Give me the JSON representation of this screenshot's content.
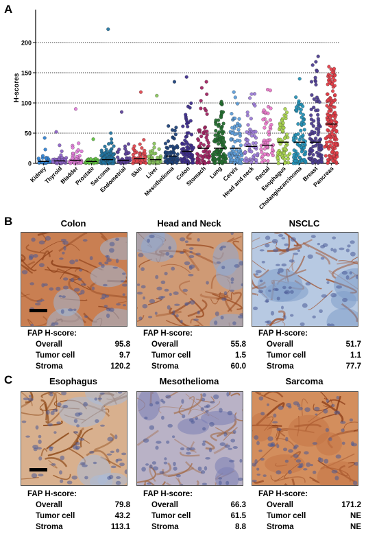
{
  "panel_labels": {
    "a": "A",
    "b": "B",
    "c": "C"
  },
  "chart_data": {
    "type": "scatter",
    "ylabel": "H-scores",
    "ylim": [
      0,
      250
    ],
    "yticks": [
      0,
      50,
      100,
      150,
      200
    ],
    "grid": "dotted horizontal at 50, 100, 150, 200",
    "categories": [
      "Kidney",
      "Thyroid",
      "Bladder",
      "Prostate",
      "Sarcoma",
      "Endometrial",
      "Skin",
      "Liver",
      "Mesothelioma",
      "Colon",
      "Stomach",
      "Lung",
      "Cervix",
      "Head and neck",
      "Rectal",
      "Esophagus",
      "Cholangiocarcinoma",
      "Breast",
      "Pancreas"
    ],
    "colors": [
      "#2e7fd0",
      "#8a5fc6",
      "#e07ad8",
      "#5cbf3d",
      "#1e73a0",
      "#5b3f99",
      "#e0424b",
      "#88c45a",
      "#1a3f78",
      "#3b2a8a",
      "#a0205e",
      "#1f6b2b",
      "#5b9bd8",
      "#9a7ad6",
      "#e875c8",
      "#a6d24a",
      "#1f8fb5",
      "#4a3a8e",
      "#e23b44"
    ],
    "stats": [
      {
        "median": 3,
        "max": 42,
        "n": 30
      },
      {
        "median": 4,
        "max": 52,
        "n": 45
      },
      {
        "median": 5,
        "max": 90,
        "n": 45
      },
      {
        "median": 3,
        "max": 40,
        "n": 25
      },
      {
        "median": 6,
        "max": 222,
        "n": 140
      },
      {
        "median": 5,
        "max": 85,
        "n": 40
      },
      {
        "median": 8,
        "max": 118,
        "n": 55
      },
      {
        "median": 6,
        "max": 112,
        "n": 45
      },
      {
        "median": 12,
        "max": 135,
        "n": 65
      },
      {
        "median": 20,
        "max": 143,
        "n": 75
      },
      {
        "median": 25,
        "max": 135,
        "n": 65
      },
      {
        "median": 25,
        "max": 102,
        "n": 110
      },
      {
        "median": 25,
        "max": 118,
        "n": 85
      },
      {
        "median": 28,
        "max": 115,
        "n": 60
      },
      {
        "median": 30,
        "max": 122,
        "n": 50
      },
      {
        "median": 35,
        "max": 90,
        "n": 60
      },
      {
        "median": 35,
        "max": 140,
        "n": 90
      },
      {
        "median": 35,
        "max": 177,
        "n": 100
      },
      {
        "median": 65,
        "max": 160,
        "n": 160
      }
    ]
  },
  "panels": [
    {
      "title": "Colon",
      "tone": "strong-stroma",
      "scale_bar": true,
      "header": "FAP H-score:",
      "rows": [
        {
          "label": "Overall",
          "value": "95.8"
        },
        {
          "label": "Tumor cell",
          "value": "9.7"
        },
        {
          "label": "Stroma",
          "value": "120.2"
        }
      ]
    },
    {
      "title": "Head and Neck",
      "tone": "nest",
      "scale_bar": false,
      "header": "FAP H-score:",
      "rows": [
        {
          "label": "Overall",
          "value": "55.8"
        },
        {
          "label": "Tumor cell",
          "value": "1.5"
        },
        {
          "label": "Stroma",
          "value": "60.0"
        }
      ]
    },
    {
      "title": "NSCLC",
      "tone": "band",
      "scale_bar": false,
      "header": "FAP H-score:",
      "rows": [
        {
          "label": "Overall",
          "value": "51.7"
        },
        {
          "label": "Tumor cell",
          "value": "1.1"
        },
        {
          "label": "Stroma",
          "value": "77.7"
        }
      ]
    },
    {
      "title": "Esophagus",
      "tone": "mixed",
      "scale_bar": true,
      "header": "FAP H-score:",
      "rows": [
        {
          "label": "Overall",
          "value": "79.8"
        },
        {
          "label": "Tumor cell",
          "value": "43.2"
        },
        {
          "label": "Stroma",
          "value": "113.1"
        }
      ]
    },
    {
      "title": "Mesothelioma",
      "tone": "diffuse-blue",
      "scale_bar": false,
      "header": "FAP H-score:",
      "rows": [
        {
          "label": "Overall",
          "value": "66.3"
        },
        {
          "label": "Tumor cell",
          "value": "61.5"
        },
        {
          "label": "Stroma",
          "value": "8.8"
        }
      ]
    },
    {
      "title": "Sarcoma",
      "tone": "diffuse-brown",
      "scale_bar": false,
      "header": "FAP H-score:",
      "rows": [
        {
          "label": "Overall",
          "value": "171.2"
        },
        {
          "label": "Tumor cell",
          "value": "NE"
        },
        {
          "label": "Stroma",
          "value": "NE"
        }
      ]
    }
  ]
}
